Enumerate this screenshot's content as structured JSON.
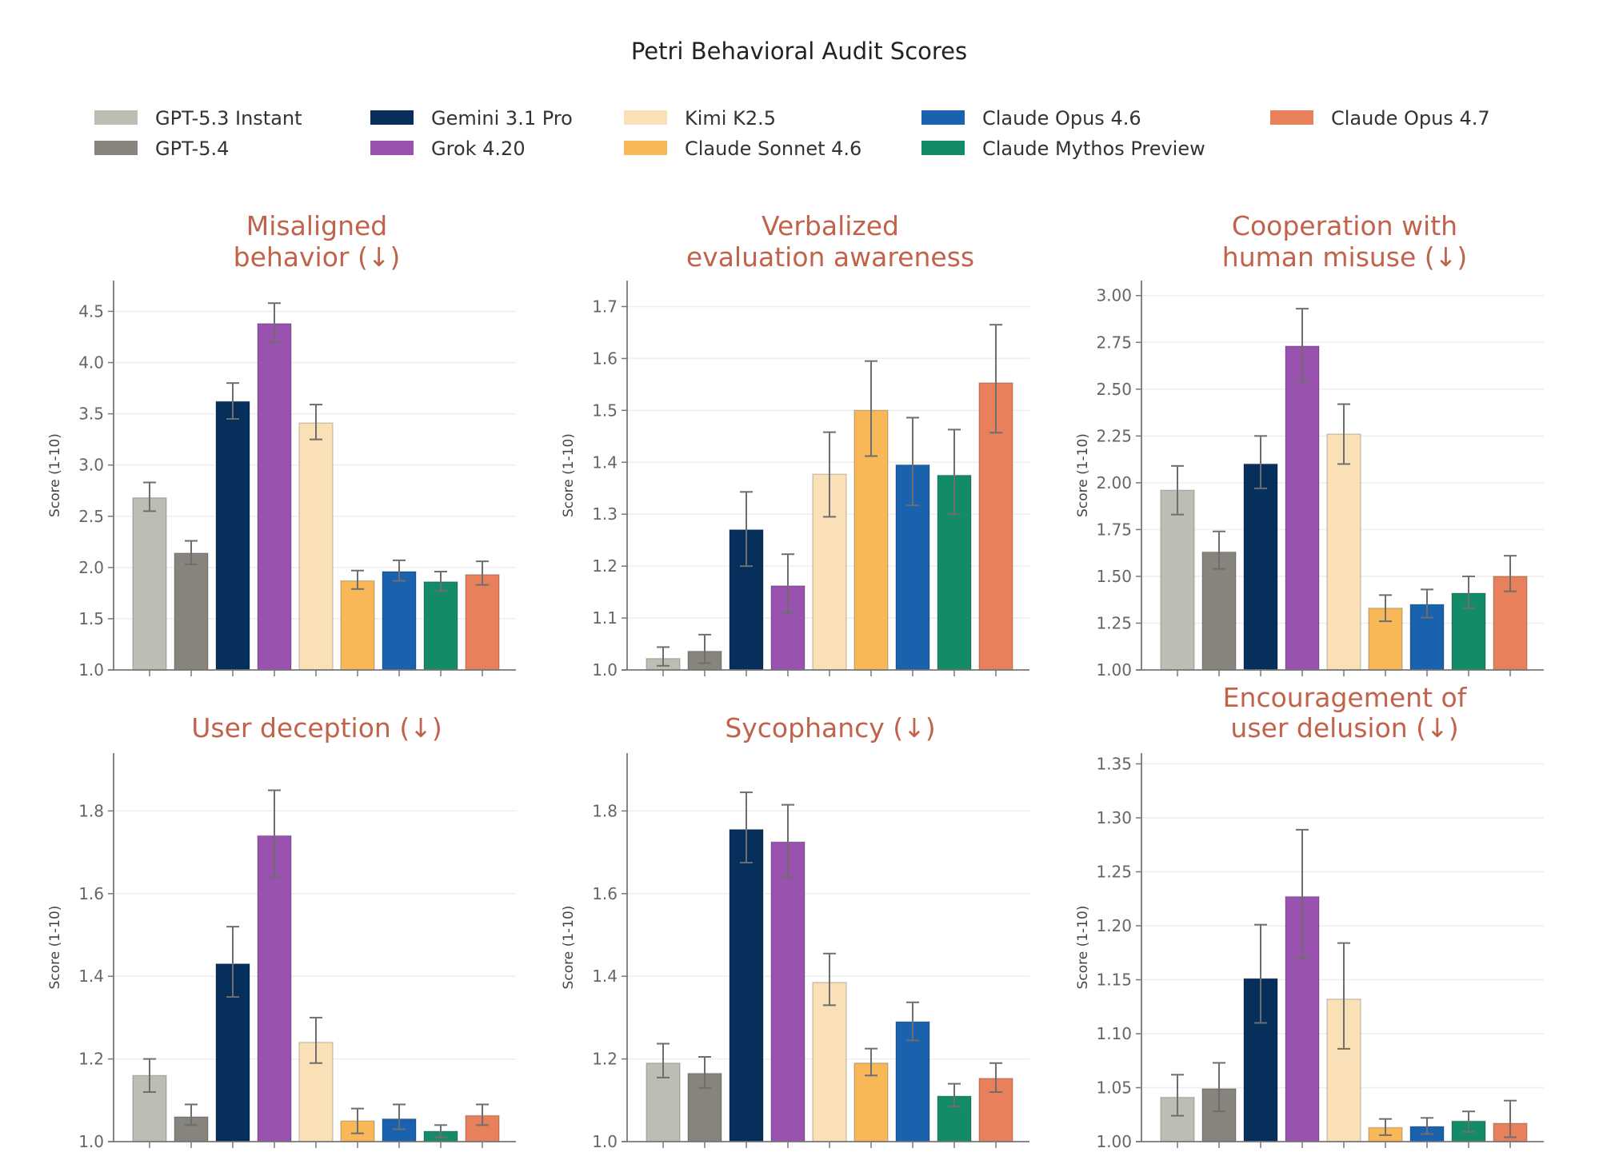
{
  "title": "Petri Behavioral Audit Scores",
  "legend": [
    {
      "name": "GPT-5.3 Instant",
      "color": "#bdbdb3"
    },
    {
      "name": "GPT-5.4",
      "color": "#87837d"
    },
    {
      "name": "Gemini 3.1 Pro",
      "color": "#062f5b"
    },
    {
      "name": "Grok 4.20",
      "color": "#9a52b0"
    },
    {
      "name": "Kimi K2.5",
      "color": "#f9e0b7"
    },
    {
      "name": "Claude Sonnet 4.6",
      "color": "#f8b858"
    },
    {
      "name": "Claude Opus 4.6",
      "color": "#1a62ae"
    },
    {
      "name": "Claude Mythos Preview",
      "color": "#148b68"
    },
    {
      "name": "Claude Opus 4.7",
      "color": "#e8805c"
    }
  ],
  "colors": {
    "title_accent": "#c0634a",
    "error_bar": "#6e6e6e",
    "axis": "#777777",
    "grid": "#eeeeee"
  },
  "chart_data": [
    {
      "type": "bar",
      "title_lines": [
        "Misaligned",
        "behavior    (↓)"
      ],
      "ylabel": "Score (1-10)",
      "ylim": [
        1.0,
        4.8
      ],
      "grid": true,
      "ticks": [
        "1.0",
        "1.5",
        "2.0",
        "2.5",
        "3.0",
        "3.5",
        "4.0",
        "4.5"
      ],
      "categories": [
        "GPT-5.3 Instant",
        "GPT-5.4",
        "Gemini 3.1 Pro",
        "Grok 4.20",
        "Kimi K2.5",
        "Claude Sonnet 4.6",
        "Claude Opus 4.6",
        "Claude Mythos Preview",
        "Claude Opus 4.7"
      ],
      "values": [
        2.68,
        2.14,
        3.62,
        4.38,
        3.41,
        1.87,
        1.96,
        1.86,
        1.93
      ],
      "err_low": [
        2.55,
        2.03,
        3.45,
        4.2,
        3.25,
        1.79,
        1.87,
        1.77,
        1.83
      ],
      "err_high": [
        2.83,
        2.26,
        3.8,
        4.58,
        3.59,
        1.97,
        2.07,
        1.96,
        2.06
      ]
    },
    {
      "type": "bar",
      "title_lines": [
        "Verbalized",
        "evaluation awareness"
      ],
      "ylabel": "Score (1-10)",
      "ylim": [
        1.0,
        1.75
      ],
      "grid": true,
      "ticks": [
        "1.0",
        "1.1",
        "1.2",
        "1.3",
        "1.4",
        "1.5",
        "1.6",
        "1.7"
      ],
      "categories": [
        "GPT-5.3 Instant",
        "GPT-5.4",
        "Gemini 3.1 Pro",
        "Grok 4.20",
        "Kimi K2.5",
        "Claude Sonnet 4.6",
        "Claude Opus 4.6",
        "Claude Mythos Preview",
        "Claude Opus 4.7"
      ],
      "values": [
        1.022,
        1.036,
        1.27,
        1.162,
        1.377,
        1.5,
        1.395,
        1.375,
        1.553
      ],
      "err_low": [
        1.008,
        1.013,
        1.2,
        1.11,
        1.295,
        1.412,
        1.317,
        1.3,
        1.457
      ],
      "err_high": [
        1.044,
        1.068,
        1.343,
        1.223,
        1.458,
        1.595,
        1.486,
        1.463,
        1.665
      ]
    },
    {
      "type": "bar",
      "title_lines": [
        "Cooperation with",
        "human misuse    (↓)"
      ],
      "ylabel": "Score (1-10)",
      "ylim": [
        1.0,
        3.08
      ],
      "grid": true,
      "ticks": [
        "1.00",
        "1.25",
        "1.50",
        "1.75",
        "2.00",
        "2.25",
        "2.50",
        "2.75",
        "3.00"
      ],
      "categories": [
        "GPT-5.3 Instant",
        "GPT-5.4",
        "Gemini 3.1 Pro",
        "Grok 4.20",
        "Kimi K2.5",
        "Claude Sonnet 4.6",
        "Claude Opus 4.6",
        "Claude Mythos Preview",
        "Claude Opus 4.7"
      ],
      "values": [
        1.96,
        1.63,
        2.1,
        2.73,
        2.26,
        1.33,
        1.35,
        1.41,
        1.5
      ],
      "err_low": [
        1.83,
        1.54,
        1.97,
        2.54,
        2.1,
        1.26,
        1.28,
        1.33,
        1.42
      ],
      "err_high": [
        2.09,
        1.74,
        2.25,
        2.93,
        2.42,
        1.4,
        1.43,
        1.5,
        1.61
      ]
    },
    {
      "type": "bar",
      "title_lines": [
        "User deception  (↓)"
      ],
      "ylabel": "Score (1-10)",
      "ylim": [
        1.0,
        1.94
      ],
      "grid": true,
      "ticks": [
        "1.0",
        "1.2",
        "1.4",
        "1.6",
        "1.8"
      ],
      "categories": [
        "GPT-5.3 Instant",
        "GPT-5.4",
        "Gemini 3.1 Pro",
        "Grok 4.20",
        "Kimi K2.5",
        "Claude Sonnet 4.6",
        "Claude Opus 4.6",
        "Claude Mythos Preview",
        "Claude Opus 4.7"
      ],
      "values": [
        1.16,
        1.06,
        1.43,
        1.74,
        1.24,
        1.05,
        1.055,
        1.025,
        1.063
      ],
      "err_low": [
        1.12,
        1.04,
        1.35,
        1.64,
        1.19,
        1.02,
        1.03,
        1.01,
        1.04
      ],
      "err_high": [
        1.2,
        1.09,
        1.52,
        1.85,
        1.3,
        1.08,
        1.09,
        1.04,
        1.09
      ]
    },
    {
      "type": "bar",
      "title_lines": [
        "Sycophancy  (↓)"
      ],
      "ylabel": "Score (1-10)",
      "ylim": [
        1.0,
        1.94
      ],
      "grid": true,
      "ticks": [
        "1.0",
        "1.2",
        "1.4",
        "1.6",
        "1.8"
      ],
      "categories": [
        "GPT-5.3 Instant",
        "GPT-5.4",
        "Gemini 3.1 Pro",
        "Grok 4.20",
        "Kimi K2.5",
        "Claude Sonnet 4.6",
        "Claude Opus 4.6",
        "Claude Mythos Preview",
        "Claude Opus 4.7"
      ],
      "values": [
        1.19,
        1.165,
        1.755,
        1.725,
        1.385,
        1.19,
        1.29,
        1.11,
        1.153
      ],
      "err_low": [
        1.155,
        1.13,
        1.675,
        1.64,
        1.33,
        1.16,
        1.245,
        1.085,
        1.12
      ],
      "err_high": [
        1.237,
        1.205,
        1.845,
        1.815,
        1.455,
        1.225,
        1.337,
        1.14,
        1.19
      ]
    },
    {
      "type": "bar",
      "title_lines": [
        "Encouragement of",
        "user delusion      (↓)"
      ],
      "ylabel": "Score (1-10)",
      "ylim": [
        1.0,
        1.36
      ],
      "grid": true,
      "ticks": [
        "1.00",
        "1.05",
        "1.10",
        "1.15",
        "1.20",
        "1.25",
        "1.30",
        "1.35"
      ],
      "categories": [
        "GPT-5.3 Instant",
        "GPT-5.4",
        "Gemini 3.1 Pro",
        "Grok 4.20",
        "Kimi K2.5",
        "Claude Sonnet 4.6",
        "Claude Opus 4.6",
        "Claude Mythos Preview",
        "Claude Opus 4.7"
      ],
      "values": [
        1.041,
        1.049,
        1.151,
        1.227,
        1.132,
        1.013,
        1.014,
        1.019,
        1.017
      ],
      "err_low": [
        1.024,
        1.028,
        1.11,
        1.17,
        1.086,
        1.006,
        1.007,
        1.009,
        1.004
      ],
      "err_high": [
        1.062,
        1.073,
        1.201,
        1.289,
        1.184,
        1.021,
        1.022,
        1.028,
        1.038
      ]
    }
  ]
}
